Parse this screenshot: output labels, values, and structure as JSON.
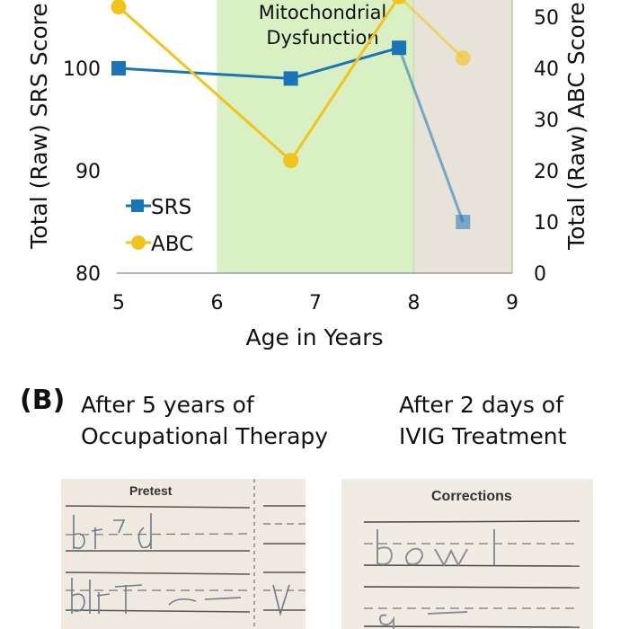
{
  "chart_data": {
    "type": "line",
    "xlabel": "Age in Years",
    "ylabel_left": "Total (Raw) SRS Score",
    "ylabel_right": "Total (Raw) ABC Score",
    "xlim": [
      5,
      9
    ],
    "xticks": [
      "5",
      "6",
      "7",
      "8",
      "9"
    ],
    "ylim_left": [
      80,
      110
    ],
    "yticks_left": [
      "80",
      "90",
      "100"
    ],
    "ylim_right": [
      0,
      55
    ],
    "yticks_right": [
      "0",
      "10",
      "20",
      "30",
      "40",
      "50"
    ],
    "shaded_regions": [
      {
        "label_lines": [
          "Mitochondrial",
          "Dysfunction"
        ],
        "x_start": 6.0,
        "x_end": 8.0,
        "color": "#d8f0c2"
      },
      {
        "label_lines": [],
        "x_start": 8.0,
        "x_end": 9.0,
        "color": "#e8e3d8"
      }
    ],
    "series": [
      {
        "name": "SRS",
        "axis": "left",
        "marker": "square",
        "color": "#1a75b8",
        "x": [
          5.0,
          6.75,
          7.85,
          8.5
        ],
        "values": [
          100,
          99,
          102,
          85
        ]
      },
      {
        "name": "ABC",
        "axis": "right",
        "marker": "circle",
        "color": "#f2c31b",
        "x": [
          5.0,
          6.75,
          7.85,
          8.5
        ],
        "values": [
          52,
          22,
          54,
          42
        ]
      }
    ],
    "legend": {
      "placement": "bottom-left",
      "entries": [
        "SRS",
        "ABC"
      ]
    }
  },
  "panel_b": {
    "label": "(B)",
    "left_caption": [
      "After 5 years of",
      "Occupational Therapy"
    ],
    "right_caption": [
      "After 2 days of",
      "IVIG Treatment"
    ],
    "left_photo_title": "Pretest",
    "right_photo_title": "Corrections"
  }
}
